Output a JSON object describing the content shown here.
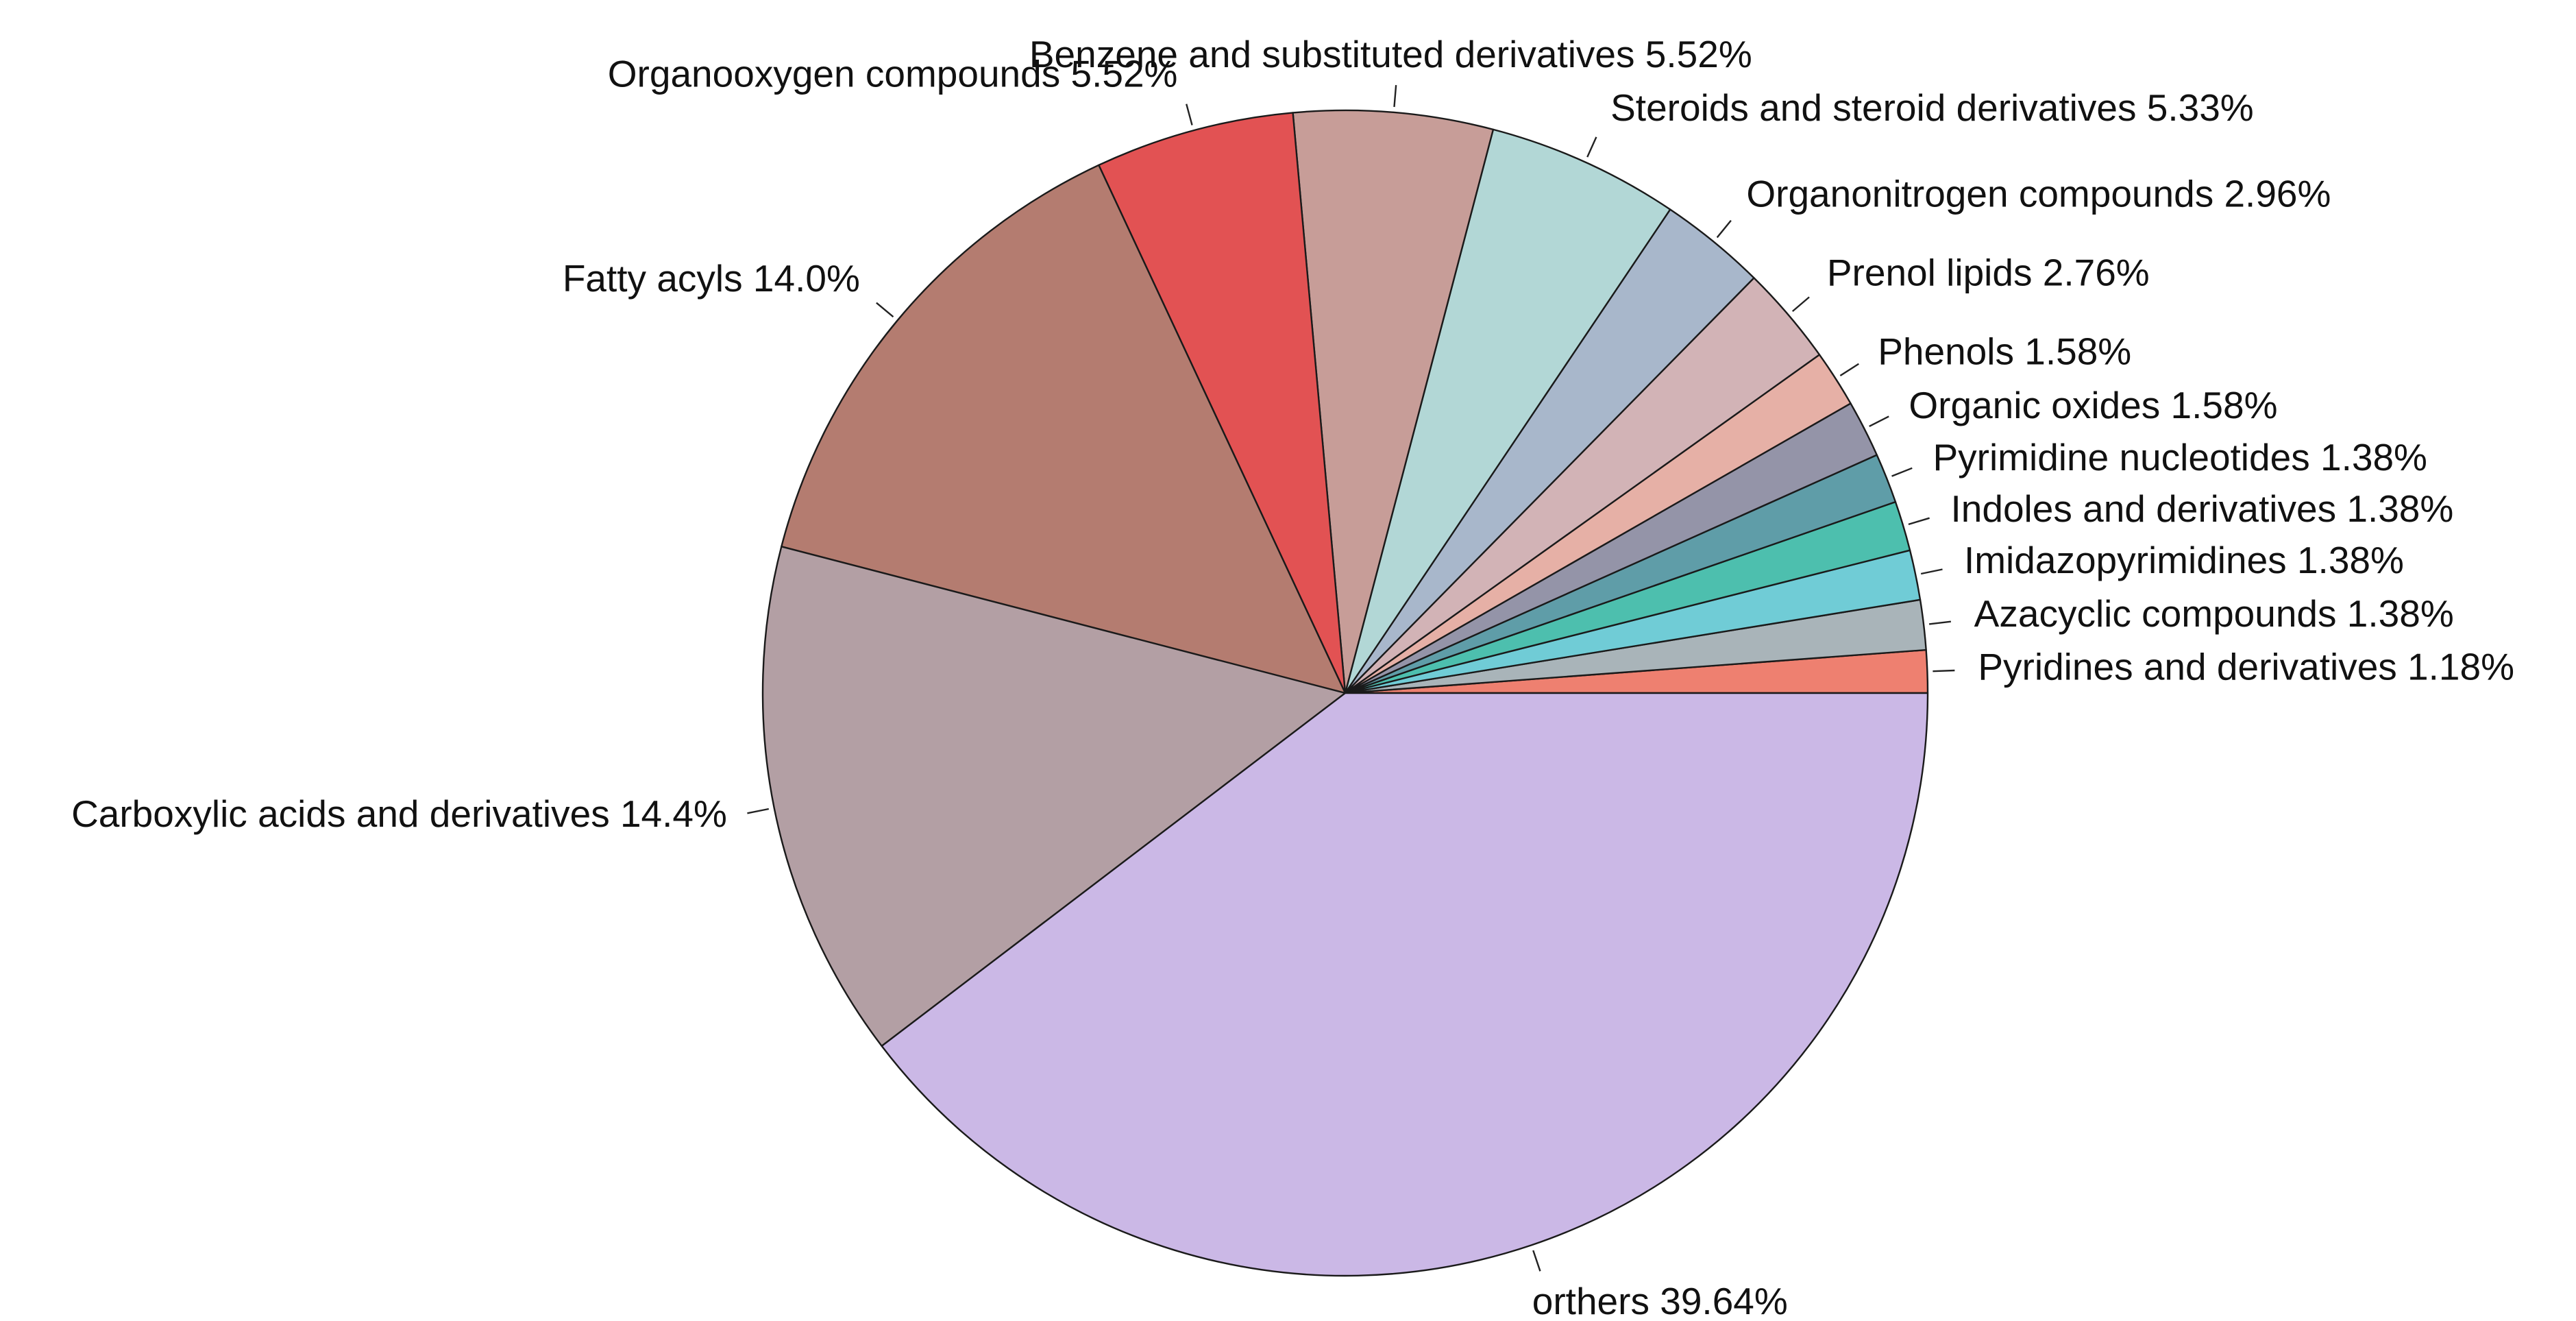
{
  "chart_data": {
    "type": "pie",
    "title": "",
    "start_angle_deg": 0,
    "direction": "counterclockwise",
    "slices": [
      {
        "label": "Pyridines and derivatives",
        "value": 1.18,
        "value_label": "1.18%",
        "color": "#EE8070"
      },
      {
        "label": "Azacyclic compounds",
        "value": 1.38,
        "value_label": "1.38%",
        "color": "#A9B4B9"
      },
      {
        "label": "Imidazopyrimidines",
        "value": 1.38,
        "value_label": "1.38%",
        "color": "#70CCD6"
      },
      {
        "label": "Indoles and derivatives",
        "value": 1.38,
        "value_label": "1.38%",
        "color": "#4DBFAE"
      },
      {
        "label": "Pyrimidine nucleotides",
        "value": 1.38,
        "value_label": "1.38%",
        "color": "#5F9DA8"
      },
      {
        "label": "Organic oxides",
        "value": 1.58,
        "value_label": "1.58%",
        "color": "#9494A8"
      },
      {
        "label": "Phenols",
        "value": 1.58,
        "value_label": "1.58%",
        "color": "#E6B0A6"
      },
      {
        "label": "Prenol lipids",
        "value": 2.76,
        "value_label": "2.76%",
        "color": "#D2B3B6"
      },
      {
        "label": "Organonitrogen compounds",
        "value": 2.96,
        "value_label": "2.96%",
        "color": "#A8B7CB"
      },
      {
        "label": "Steroids and steroid derivatives",
        "value": 5.33,
        "value_label": "5.33%",
        "color": "#B2D7D6"
      },
      {
        "label": "Benzene and substituted derivatives",
        "value": 5.52,
        "value_label": "5.52%",
        "color": "#C79D98"
      },
      {
        "label": "Organooxygen compounds",
        "value": 5.52,
        "value_label": "5.52%",
        "color": "#E25253"
      },
      {
        "label": "Fatty acyls",
        "value": 14.0,
        "value_label": "14.0%",
        "color": "#B47C70"
      },
      {
        "label": "Carboxylic acids and derivatives",
        "value": 14.4,
        "value_label": "14.4%",
        "color": "#B39FA4"
      },
      {
        "label": "orthers",
        "value": 39.64,
        "value_label": "39.64%",
        "color": "#CBB8E6"
      }
    ]
  }
}
